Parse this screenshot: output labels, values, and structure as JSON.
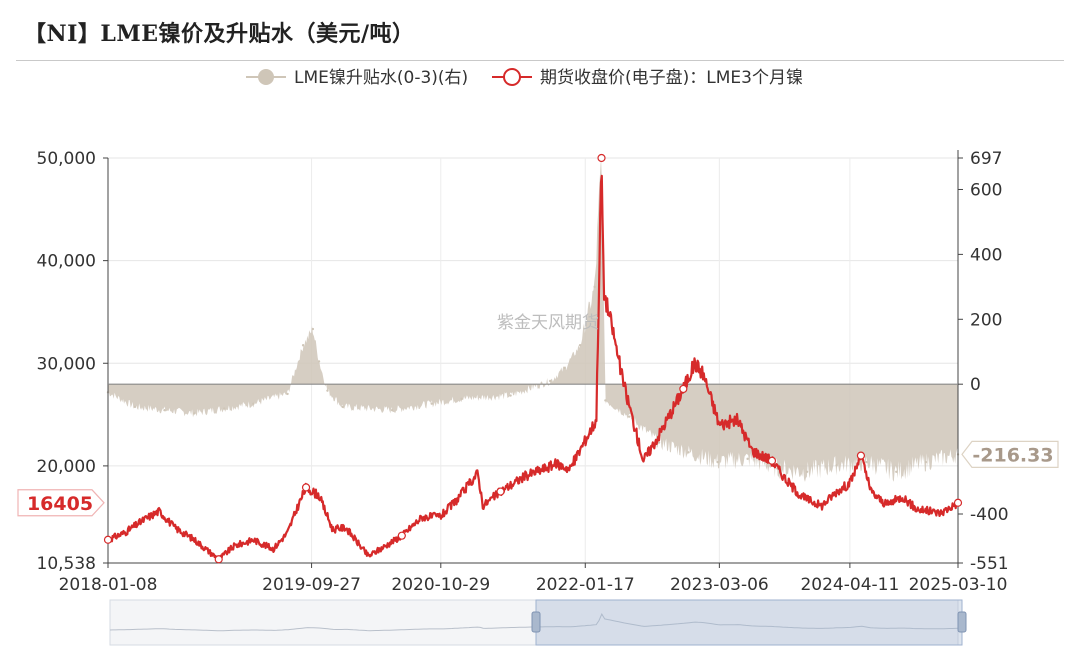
{
  "title": "【NI】LME镍价及升贴水（美元/吨）",
  "watermark": "紫金天风期货",
  "chart_data": {
    "type": "line",
    "legend_position": "top-center",
    "grid": true,
    "x_ticks": [
      "2018-01-08",
      "2019-09-27",
      "2020-10-29",
      "2022-01-17",
      "2023-03-06",
      "2024-04-11",
      "2025-03-10"
    ],
    "xlim": [
      "2018-01-08",
      "2025-03-10"
    ],
    "y_left": {
      "ylim": [
        10538,
        50000
      ],
      "ticks": [
        "10,538",
        "20,000",
        "30,000",
        "40,000",
        "50,000"
      ]
    },
    "y_right": {
      "ylim": [
        -551,
        697
      ],
      "ticks": [
        "-551",
        "-400",
        "0",
        "200",
        "400",
        "600",
        "697"
      ]
    },
    "series": [
      {
        "name": "LME镍升贴水(0-3)(右)",
        "axis": "right",
        "type": "area",
        "color": "#cfc6b8",
        "last_value_label": "-216.33",
        "points": [
          [
            "2018-01-08",
            -25
          ],
          [
            "2018-04-01",
            -70
          ],
          [
            "2018-07-01",
            -80
          ],
          [
            "2018-10-01",
            -90
          ],
          [
            "2019-01-01",
            -75
          ],
          [
            "2019-04-01",
            -60
          ],
          [
            "2019-07-15",
            -30
          ],
          [
            "2019-09-01",
            120
          ],
          [
            "2019-10-01",
            170
          ],
          [
            "2019-10-20",
            70
          ],
          [
            "2019-11-15",
            -20
          ],
          [
            "2020-01-01",
            -70
          ],
          [
            "2020-06-01",
            -80
          ],
          [
            "2020-10-01",
            -60
          ],
          [
            "2021-01-01",
            -45
          ],
          [
            "2021-06-01",
            -35
          ],
          [
            "2021-10-01",
            10
          ],
          [
            "2021-11-15",
            50
          ],
          [
            "2022-01-01",
            120
          ],
          [
            "2022-02-15",
            300
          ],
          [
            "2022-03-08",
            697
          ],
          [
            "2022-03-20",
            -50
          ],
          [
            "2022-06-01",
            -100
          ],
          [
            "2022-09-01",
            -180
          ],
          [
            "2022-12-01",
            -210
          ],
          [
            "2023-03-01",
            -240
          ],
          [
            "2023-06-01",
            -230
          ],
          [
            "2023-09-01",
            -260
          ],
          [
            "2023-12-01",
            -270
          ],
          [
            "2024-03-01",
            -250
          ],
          [
            "2024-06-01",
            -240
          ],
          [
            "2024-09-01",
            -270
          ],
          [
            "2024-12-01",
            -240
          ],
          [
            "2025-03-10",
            -216.33
          ]
        ]
      },
      {
        "name": "期货收盘价(电子盘)：LME3个月镍",
        "axis": "left",
        "type": "line",
        "color": "#d62a2a",
        "last_value_label": "16405",
        "points": [
          [
            "2018-01-08",
            12800
          ],
          [
            "2018-03-01",
            13500
          ],
          [
            "2018-05-01",
            14800
          ],
          [
            "2018-06-15",
            15600
          ],
          [
            "2018-08-01",
            14000
          ],
          [
            "2018-10-01",
            12800
          ],
          [
            "2018-12-15",
            10900
          ],
          [
            "2019-02-01",
            12200
          ],
          [
            "2019-04-01",
            12800
          ],
          [
            "2019-06-01",
            11900
          ],
          [
            "2019-07-15",
            13500
          ],
          [
            "2019-08-15",
            16000
          ],
          [
            "2019-09-10",
            17900
          ],
          [
            "2019-10-20",
            17100
          ],
          [
            "2019-12-01",
            13800
          ],
          [
            "2020-01-10",
            14000
          ],
          [
            "2020-03-20",
            11200
          ],
          [
            "2020-05-01",
            12000
          ],
          [
            "2020-07-01",
            13200
          ],
          [
            "2020-09-01",
            15000
          ],
          [
            "2020-10-29",
            15100
          ],
          [
            "2020-12-15",
            16600
          ],
          [
            "2021-02-20",
            19300
          ],
          [
            "2021-03-08",
            16100
          ],
          [
            "2021-05-01",
            17500
          ],
          [
            "2021-07-15",
            19000
          ],
          [
            "2021-10-20",
            20200
          ],
          [
            "2021-12-01",
            19700
          ],
          [
            "2022-01-17",
            22500
          ],
          [
            "2022-02-20",
            24500
          ],
          [
            "2022-03-08",
            50000
          ],
          [
            "2022-03-15",
            37000
          ],
          [
            "2022-04-10",
            33500
          ],
          [
            "2022-05-15",
            28000
          ],
          [
            "2022-07-15",
            20500
          ],
          [
            "2022-09-01",
            23000
          ],
          [
            "2022-11-15",
            27500
          ],
          [
            "2022-12-20",
            30000
          ],
          [
            "2023-01-15",
            29000
          ],
          [
            "2023-03-06",
            24000
          ],
          [
            "2023-05-01",
            24500
          ],
          [
            "2023-06-15",
            21500
          ],
          [
            "2023-08-15",
            20500
          ],
          [
            "2023-10-01",
            18500
          ],
          [
            "2023-11-15",
            17000
          ],
          [
            "2024-01-15",
            16100
          ],
          [
            "2024-03-01",
            17500
          ],
          [
            "2024-04-11",
            18300
          ],
          [
            "2024-05-15",
            21000
          ],
          [
            "2024-06-15",
            17500
          ],
          [
            "2024-08-01",
            16200
          ],
          [
            "2024-09-20",
            17000
          ],
          [
            "2024-11-01",
            15800
          ],
          [
            "2025-01-15",
            15400
          ],
          [
            "2025-03-10",
            16405
          ]
        ]
      }
    ]
  }
}
